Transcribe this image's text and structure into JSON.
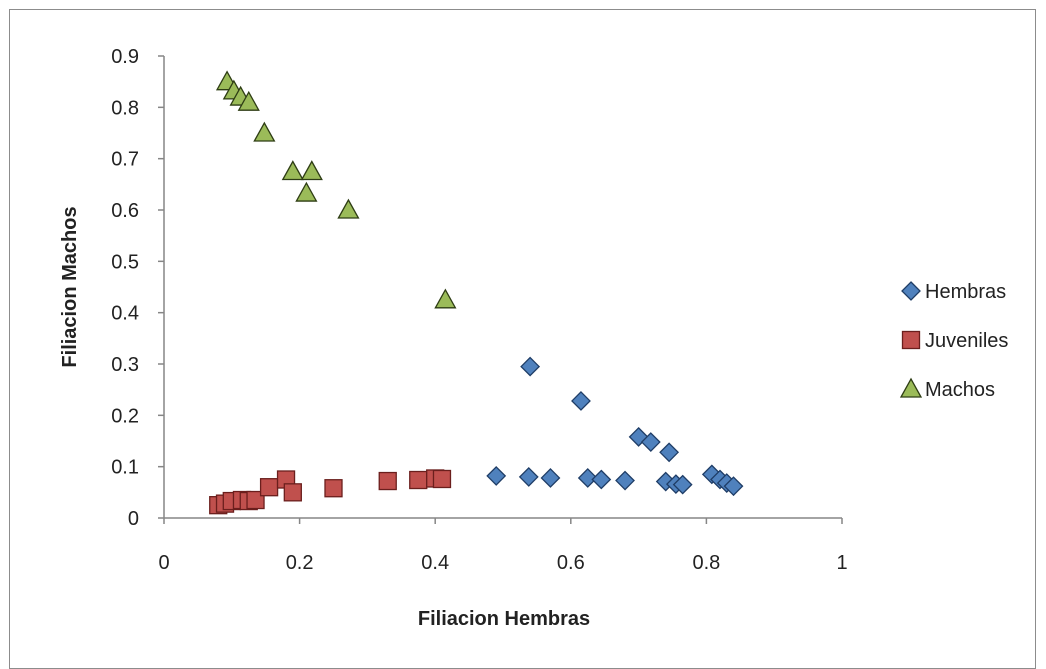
{
  "chart_data": {
    "type": "scatter",
    "title": "",
    "xlabel": "Filiacion Hembras",
    "ylabel": "Filiacion  Machos",
    "xlim": [
      0,
      1
    ],
    "ylim": [
      0,
      0.9
    ],
    "x_ticks": [
      "0",
      "0.2",
      "0.4",
      "0.6",
      "0.8",
      "1"
    ],
    "y_ticks": [
      "0",
      "0.1",
      "0.2",
      "0.3",
      "0.4",
      "0.5",
      "0.6",
      "0.7",
      "0.8",
      "0.9"
    ],
    "grid": false,
    "legend_position": "right",
    "series": [
      {
        "name": "Hembras",
        "marker": "diamond",
        "color": "#4f81bd",
        "edge_color": "#1f3d66",
        "points": [
          [
            0.54,
            0.295
          ],
          [
            0.615,
            0.228
          ],
          [
            0.7,
            0.158
          ],
          [
            0.718,
            0.148
          ],
          [
            0.745,
            0.128
          ],
          [
            0.49,
            0.082
          ],
          [
            0.538,
            0.08
          ],
          [
            0.57,
            0.078
          ],
          [
            0.625,
            0.078
          ],
          [
            0.645,
            0.075
          ],
          [
            0.68,
            0.073
          ],
          [
            0.74,
            0.071
          ],
          [
            0.755,
            0.066
          ],
          [
            0.765,
            0.065
          ],
          [
            0.808,
            0.085
          ],
          [
            0.82,
            0.075
          ],
          [
            0.83,
            0.068
          ],
          [
            0.84,
            0.062
          ]
        ]
      },
      {
        "name": "Juveniles",
        "marker": "square",
        "color": "#c0504d",
        "edge_color": "#6b1f1d",
        "points": [
          [
            0.08,
            0.025
          ],
          [
            0.09,
            0.028
          ],
          [
            0.1,
            0.033
          ],
          [
            0.115,
            0.035
          ],
          [
            0.125,
            0.033
          ],
          [
            0.135,
            0.035
          ],
          [
            0.155,
            0.06
          ],
          [
            0.18,
            0.075
          ],
          [
            0.19,
            0.05
          ],
          [
            0.25,
            0.058
          ],
          [
            0.33,
            0.072
          ],
          [
            0.375,
            0.074
          ],
          [
            0.4,
            0.077
          ],
          [
            0.41,
            0.076
          ]
        ]
      },
      {
        "name": "Machos",
        "marker": "triangle",
        "color": "#9bbb59",
        "edge_color": "#2e3d14",
        "points": [
          [
            0.093,
            0.85
          ],
          [
            0.103,
            0.832
          ],
          [
            0.113,
            0.82
          ],
          [
            0.125,
            0.81
          ],
          [
            0.148,
            0.75
          ],
          [
            0.19,
            0.675
          ],
          [
            0.218,
            0.675
          ],
          [
            0.21,
            0.633
          ],
          [
            0.272,
            0.6
          ],
          [
            0.415,
            0.425
          ]
        ]
      }
    ]
  }
}
